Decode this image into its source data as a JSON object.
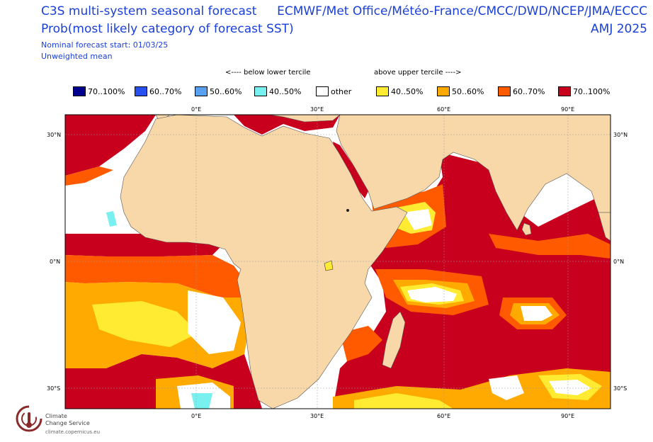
{
  "header": {
    "title_line1": "C3S multi-system seasonal forecast",
    "title_line2": "Prob(most likely category of forecast SST)",
    "start": "Nominal forecast start: 01/03/25",
    "mean": "Unweighted mean",
    "systems": "ECMWF/Met Office/Météo-France/CMCC/DWD/NCEP/JMA/ECCC",
    "season": "AMJ 2025"
  },
  "legend": {
    "below_label": "<---- below lower tercile",
    "above_label": "above upper tercile ---->",
    "items": [
      {
        "label": "70..100%",
        "color": "#00008c"
      },
      {
        "label": "60..70%",
        "color": "#2850f0"
      },
      {
        "label": "50..60%",
        "color": "#5aa0f0"
      },
      {
        "label": "40..50%",
        "color": "#78f0f0"
      },
      {
        "label": "other",
        "color": "#ffffff"
      },
      {
        "label": "40..50%",
        "color": "#ffeb32"
      },
      {
        "label": "50..60%",
        "color": "#ffaa00"
      },
      {
        "label": "60..70%",
        "color": "#ff5a00"
      },
      {
        "label": "70..100%",
        "color": "#c8001e"
      }
    ]
  },
  "map": {
    "land_color": "#f8d7a8",
    "lon_ticks": [
      "0°E",
      "30°E",
      "60°E",
      "90°E"
    ],
    "lat_ticks": [
      "30°N",
      "0°N",
      "30°S"
    ]
  },
  "logo": {
    "line1": "Climate",
    "line2": "Change Service",
    "url": "climate.copernicus.eu"
  }
}
